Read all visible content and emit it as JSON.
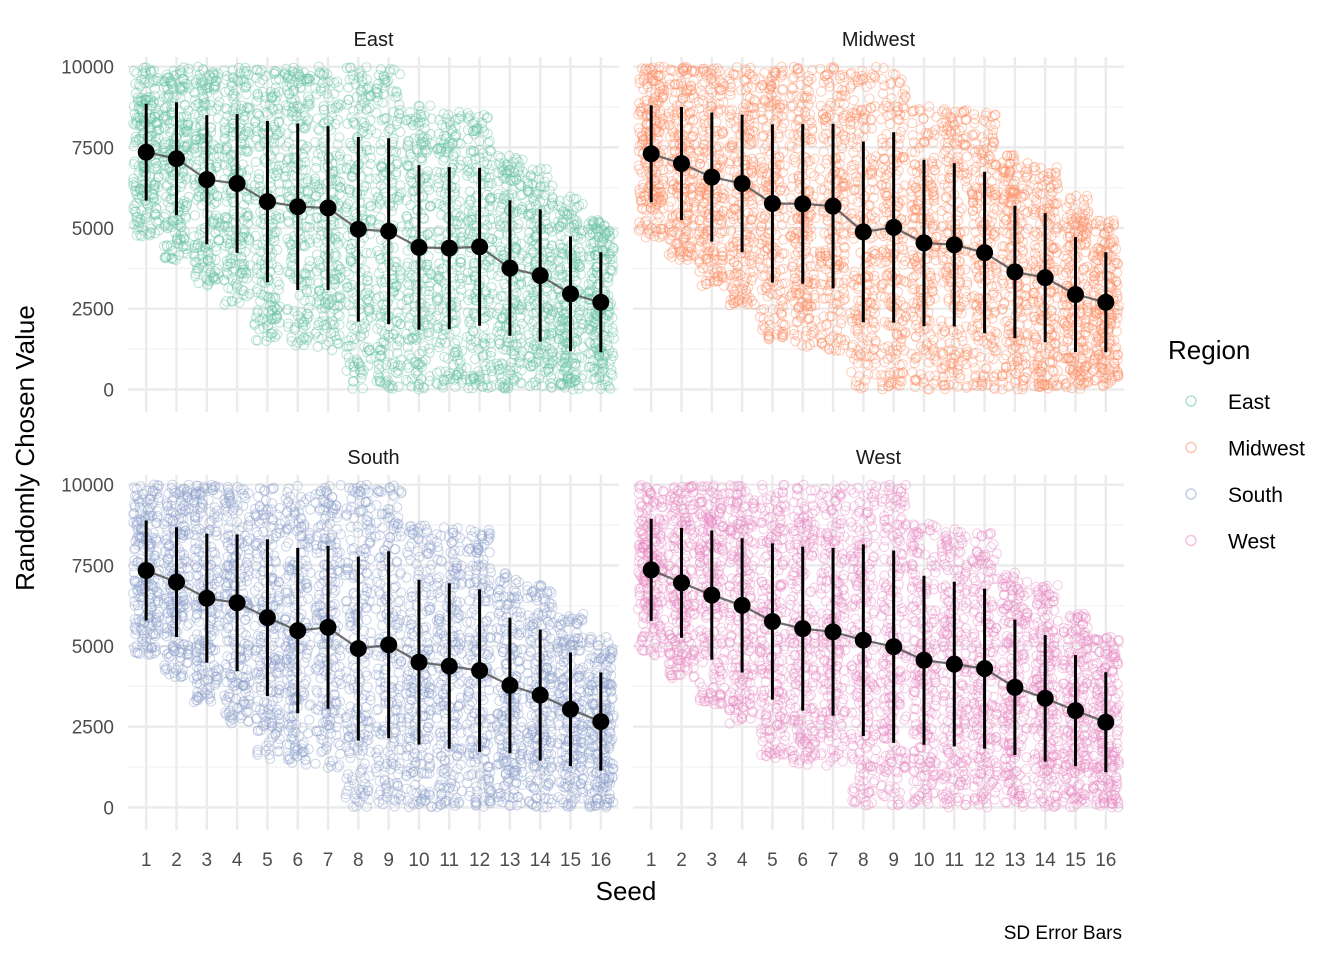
{
  "chart_data": {
    "type": "scatter",
    "facet_by": "Region",
    "xlabel": "Seed",
    "ylabel": "Randomly Chosen Value",
    "caption": "SD Error Bars",
    "x_ticks": [
      "1",
      "2",
      "3",
      "4",
      "5",
      "6",
      "7",
      "8",
      "9",
      "10",
      "11",
      "12",
      "13",
      "14",
      "15",
      "16"
    ],
    "y_ticks": [
      0,
      2500,
      5000,
      7500,
      10000
    ],
    "y_tick_labels": [
      "0",
      "2500",
      "5000",
      "7500",
      "10000"
    ],
    "ylim": [
      0,
      10000
    ],
    "grid": true,
    "legend": {
      "title": "Region",
      "placement": "right",
      "entries": [
        {
          "name": "East",
          "color": "#66c2a5"
        },
        {
          "name": "Midwest",
          "color": "#fc8d62"
        },
        {
          "name": "South",
          "color": "#8da0cb"
        },
        {
          "name": "West",
          "color": "#e78ac3"
        }
      ]
    },
    "raw_point_ranges": {
      "seeds": [
        1,
        2,
        3,
        4,
        5,
        6,
        7,
        8,
        9,
        10,
        11,
        12,
        13,
        14,
        15,
        16
      ],
      "min": [
        4700,
        4000,
        3200,
        2600,
        1500,
        1300,
        1200,
        0,
        0,
        0,
        0,
        0,
        0,
        0,
        0,
        0
      ],
      "max": [
        10000,
        10000,
        10000,
        10000,
        10000,
        10000,
        10000,
        10000,
        10000,
        8800,
        8700,
        8600,
        7300,
        6900,
        6000,
        5300
      ]
    },
    "panels": [
      {
        "region": "East",
        "color": "#66c2a5",
        "x": [
          1,
          2,
          3,
          4,
          5,
          6,
          7,
          8,
          9,
          10,
          11,
          12,
          13,
          14,
          15,
          16
        ],
        "mean": [
          7350,
          7150,
          6500,
          6380,
          5820,
          5660,
          5620,
          4960,
          4900,
          4400,
          4380,
          4420,
          3760,
          3530,
          2960,
          2700
        ],
        "sd": [
          1500,
          1750,
          2000,
          2150,
          2500,
          2580,
          2540,
          2860,
          2880,
          2550,
          2510,
          2450,
          2100,
          2050,
          1780,
          1550
        ]
      },
      {
        "region": "Midwest",
        "color": "#fc8d62",
        "x": [
          1,
          2,
          3,
          4,
          5,
          6,
          7,
          8,
          9,
          10,
          11,
          12,
          13,
          14,
          15,
          16
        ],
        "mean": [
          7300,
          7000,
          6580,
          6380,
          5760,
          5750,
          5680,
          4880,
          5020,
          4540,
          4480,
          4240,
          3640,
          3460,
          2940,
          2700
        ],
        "sd": [
          1500,
          1750,
          2000,
          2130,
          2450,
          2470,
          2550,
          2800,
          2950,
          2580,
          2530,
          2500,
          2050,
          2000,
          1780,
          1550
        ]
      },
      {
        "region": "South",
        "color": "#8da0cb",
        "x": [
          1,
          2,
          3,
          4,
          5,
          6,
          7,
          8,
          9,
          10,
          11,
          12,
          13,
          14,
          15,
          16
        ],
        "mean": [
          7340,
          6980,
          6480,
          6340,
          5880,
          5480,
          5580,
          4920,
          5040,
          4500,
          4380,
          4240,
          3780,
          3480,
          3040,
          2660
        ],
        "sd": [
          1550,
          1700,
          2000,
          2120,
          2430,
          2560,
          2520,
          2850,
          2900,
          2550,
          2560,
          2520,
          2100,
          2030,
          1760,
          1520
        ]
      },
      {
        "region": "West",
        "color": "#e78ac3",
        "x": [
          1,
          2,
          3,
          4,
          5,
          6,
          7,
          8,
          9,
          10,
          11,
          12,
          13,
          14,
          15,
          16
        ],
        "mean": [
          7360,
          6960,
          6580,
          6260,
          5760,
          5540,
          5440,
          5180,
          4980,
          4560,
          4440,
          4300,
          3720,
          3380,
          3000,
          2640
        ],
        "sd": [
          1580,
          1700,
          2000,
          2080,
          2420,
          2540,
          2600,
          2970,
          2980,
          2620,
          2550,
          2480,
          2100,
          1960,
          1720,
          1550
        ]
      }
    ]
  }
}
